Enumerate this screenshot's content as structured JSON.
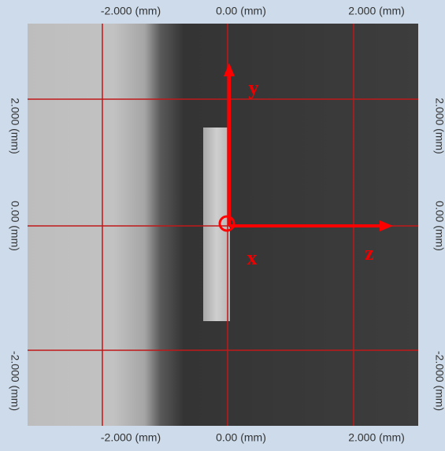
{
  "axis_labels": {
    "top": [
      "-2.000 (mm)",
      "0.00 (mm)",
      "2.000 (mm)"
    ],
    "bottom": [
      "-2.000 (mm)",
      "0.00 (mm)",
      "2.000 (mm)"
    ],
    "left": [
      "2.000 (mm)",
      "0.00 (mm)",
      "-2.000 (mm)"
    ],
    "right": [
      "2.000 (mm)",
      "0.00 (mm)",
      "-2.000 (mm)"
    ]
  },
  "annotations": {
    "y": "y",
    "x": "x",
    "z": "z"
  }
}
